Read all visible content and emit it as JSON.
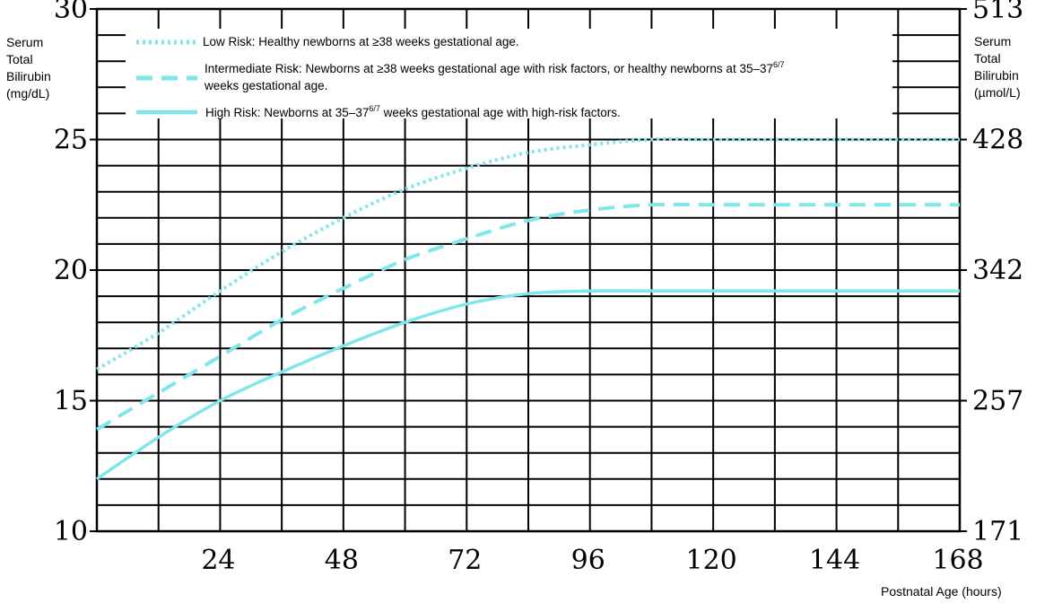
{
  "chart_data": {
    "type": "line",
    "title": "",
    "xlabel": "Postnatal Age (hours)",
    "ylabel_left": [
      "Serum",
      "Total",
      "Bilirubin",
      "(mg/dL)"
    ],
    "ylabel_right": [
      "Serum",
      "Total",
      "Bilirubin",
      "(µmol/L)"
    ],
    "xlim": [
      0,
      168
    ],
    "ylim": [
      10,
      30
    ],
    "x_ticks": [
      24,
      48,
      72,
      96,
      120,
      144,
      168
    ],
    "y_ticks_left": [
      {
        "value": 10,
        "label": "10"
      },
      {
        "value": 15,
        "label": "15"
      },
      {
        "value": 20,
        "label": "20"
      },
      {
        "value": 25,
        "label": "25"
      },
      {
        "value": 30,
        "label": "30"
      }
    ],
    "y_ticks_right": [
      {
        "value": 10,
        "label": "171"
      },
      {
        "value": 15,
        "label": "257"
      },
      {
        "value": 20,
        "label": "342"
      },
      {
        "value": 25,
        "label": "428"
      },
      {
        "value": 30,
        "label": "513"
      }
    ],
    "grid": true,
    "legend_position": "top-left",
    "series": [
      {
        "name": "Low Risk: Healthy newborns at ≥38 weeks gestational age.",
        "legend": {
          "text": "Low Risk: Healthy newborns at ≥38 weeks gestational age."
        },
        "style": "dotted",
        "color": "#7fe6ea",
        "x": [
          0,
          12,
          24,
          36,
          48,
          60,
          72,
          84,
          96,
          108,
          120,
          144,
          168
        ],
        "y": [
          16.2,
          17.6,
          19.2,
          20.7,
          22.0,
          23.1,
          23.9,
          24.5,
          24.8,
          25.0,
          25.0,
          25.0,
          25.0
        ]
      },
      {
        "name": "Intermediate Risk: Newborns at ≥38 weeks gestational age with risk factors, or healthy newborns at 35–37 6/7 weeks gestational age.",
        "legend": {
          "line1_pre": "Intermediate Risk: Newborns at ≥38 weeks gestational age with risk factors, or healthy newborns at 35–37",
          "line1_sup": "6/7",
          "line2": "weeks gestational age."
        },
        "style": "dashed",
        "color": "#7fe6ea",
        "x": [
          0,
          12,
          24,
          36,
          48,
          60,
          72,
          84,
          96,
          108,
          120,
          144,
          168
        ],
        "y": [
          13.9,
          15.3,
          16.7,
          18.1,
          19.3,
          20.4,
          21.2,
          21.9,
          22.3,
          22.5,
          22.5,
          22.5,
          22.5
        ]
      },
      {
        "name": "High Risk: Newborns at 35–37 6/7 weeks gestational age with high-risk factors.",
        "legend": {
          "pre": "High Risk: Newborns at 35–37",
          "sup": "6/7",
          "post": " weeks gestational age with high-risk factors."
        },
        "style": "solid",
        "color": "#7fe6ea",
        "x": [
          0,
          12,
          24,
          36,
          48,
          60,
          72,
          84,
          96,
          108,
          120,
          144,
          168
        ],
        "y": [
          12.0,
          13.6,
          15.0,
          16.1,
          17.1,
          18.0,
          18.7,
          19.1,
          19.2,
          19.2,
          19.2,
          19.2,
          19.2
        ]
      }
    ]
  }
}
